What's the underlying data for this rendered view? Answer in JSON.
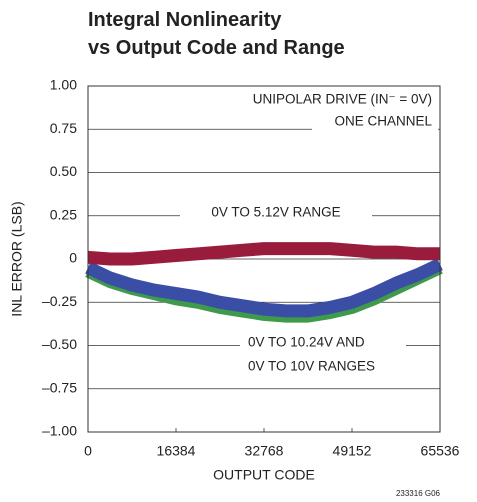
{
  "chart_data": {
    "type": "line",
    "title": [
      "Integral Nonlinearity",
      "vs Output Code and Range"
    ],
    "xlabel": "OUTPUT CODE",
    "ylabel": "INL ERROR (LSB)",
    "x": [
      0,
      4096,
      8192,
      12288,
      16384,
      20480,
      24576,
      28672,
      32768,
      36864,
      40960,
      45056,
      49152,
      53248,
      57344,
      61440,
      65536
    ],
    "series": [
      {
        "color": "#3f9a4c",
        "values": [
          -0.07,
          -0.13,
          -0.17,
          -0.2,
          -0.23,
          -0.25,
          -0.28,
          -0.3,
          -0.32,
          -0.33,
          -0.33,
          -0.31,
          -0.28,
          -0.23,
          -0.17,
          -0.11,
          -0.05
        ]
      },
      {
        "color": "#3b4ea6",
        "values": [
          -0.05,
          -0.11,
          -0.15,
          -0.18,
          -0.2,
          -0.22,
          -0.25,
          -0.27,
          -0.29,
          -0.3,
          -0.3,
          -0.28,
          -0.25,
          -0.2,
          -0.14,
          -0.09,
          -0.03
        ]
      },
      {
        "color": "#9a1c3c",
        "values": [
          0.01,
          0.0,
          0.0,
          0.01,
          0.02,
          0.03,
          0.04,
          0.05,
          0.06,
          0.06,
          0.06,
          0.06,
          0.05,
          0.04,
          0.04,
          0.03,
          0.03
        ]
      }
    ],
    "xlim": [
      0,
      65536
    ],
    "xticks": [
      0,
      16384,
      32768,
      49152,
      65536
    ],
    "ylim": [
      -1,
      1
    ],
    "yticks": [
      {
        "value": -1,
        "label": "–1.00"
      },
      {
        "value": -0.75,
        "label": "–0.75"
      },
      {
        "value": -0.5,
        "label": "–0.50"
      },
      {
        "value": -0.25,
        "label": "–0.25"
      },
      0,
      {
        "value": 0.25,
        "label": "0.25"
      },
      {
        "value": 0.5,
        "label": "0.50"
      },
      {
        "value": 0.75,
        "label": "0.75"
      },
      {
        "value": 1,
        "label": "1.00"
      }
    ],
    "grid": true,
    "annotations": [
      "UNIPOLAR DRIVE (IN⁻ = 0V)",
      "ONE CHANNEL",
      "0V TO 5.12V RANGE",
      "0V TO 10.24V AND",
      "0V TO 10V RANGES"
    ],
    "footnote": "233316 G06"
  }
}
